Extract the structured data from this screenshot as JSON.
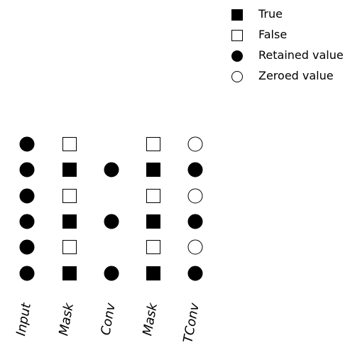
{
  "legend": {
    "items": [
      {
        "label": "True",
        "marker": "square-filled"
      },
      {
        "label": "False",
        "marker": "square-empty"
      },
      {
        "label": "Retained value",
        "marker": "circle-filled"
      },
      {
        "label": "Zeroed value",
        "marker": "circle-empty"
      }
    ]
  },
  "columns": [
    {
      "label": "Input",
      "cells": [
        "circle-filled",
        "circle-filled",
        "circle-filled",
        "circle-filled",
        "circle-filled",
        "circle-filled"
      ]
    },
    {
      "label": "Mask",
      "cells": [
        "square-empty",
        "square-filled",
        "square-empty",
        "square-filled",
        "square-empty",
        "square-filled"
      ]
    },
    {
      "label": "Conv",
      "cells": [
        null,
        "circle-filled",
        null,
        "circle-filled",
        null,
        "circle-filled"
      ]
    },
    {
      "label": "Mask",
      "cells": [
        "square-empty",
        "square-filled",
        "square-empty",
        "square-filled",
        "square-empty",
        "square-filled"
      ]
    },
    {
      "label": "TConv",
      "cells": [
        "circle-empty",
        "circle-filled",
        "circle-empty",
        "circle-filled",
        "circle-empty",
        "circle-filled"
      ]
    }
  ],
  "colors": {
    "ink": "#000000",
    "paper": "#ffffff"
  }
}
